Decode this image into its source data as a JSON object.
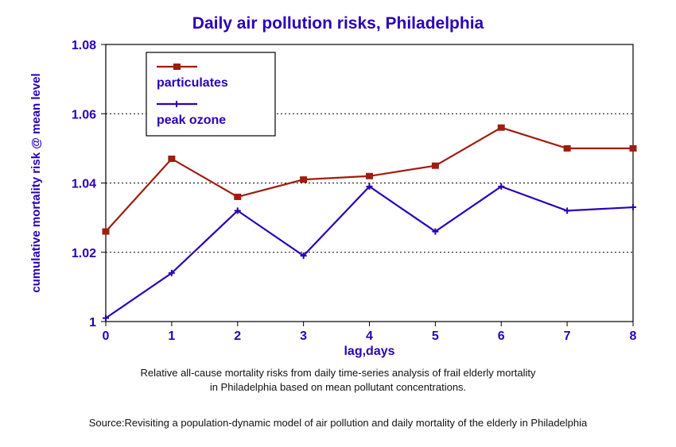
{
  "chart_data": {
    "type": "line",
    "title": "Daily air pollution risks, Philadelphia",
    "xlabel": "lag,days",
    "ylabel": "cumulative mortality risk @ mean level",
    "x": [
      0,
      1,
      2,
      3,
      4,
      5,
      6,
      7,
      8
    ],
    "xlim": [
      0,
      8
    ],
    "ylim": [
      1,
      1.08
    ],
    "yticks": [
      "1",
      "1.02",
      "1.04",
      "1.06",
      "1.08"
    ],
    "xticks": [
      "0",
      "1",
      "2",
      "3",
      "4",
      "5",
      "6",
      "7",
      "8"
    ],
    "grid": "horizontal dotted",
    "legend_placement": "top-left",
    "series": [
      {
        "name": "particulates",
        "color": "#a01c10",
        "marker": "square",
        "values": [
          1.026,
          1.047,
          1.036,
          1.041,
          1.042,
          1.045,
          1.056,
          1.05,
          1.05
        ]
      },
      {
        "name": "peak ozone",
        "color": "#2a00b8",
        "marker": "plus",
        "values": [
          1.001,
          1.014,
          1.032,
          1.019,
          1.039,
          1.026,
          1.039,
          1.032,
          1.033
        ]
      }
    ]
  },
  "captions": {
    "line1": "Relative all-cause mortality risks from daily time-series analysis of frail elderly mortality",
    "line2": "in Philadelphia based on mean pollutant concentrations.",
    "source": "Source:Revisiting a population-dynamic model of air pollution and daily mortality of the elderly in Philadelphia"
  }
}
